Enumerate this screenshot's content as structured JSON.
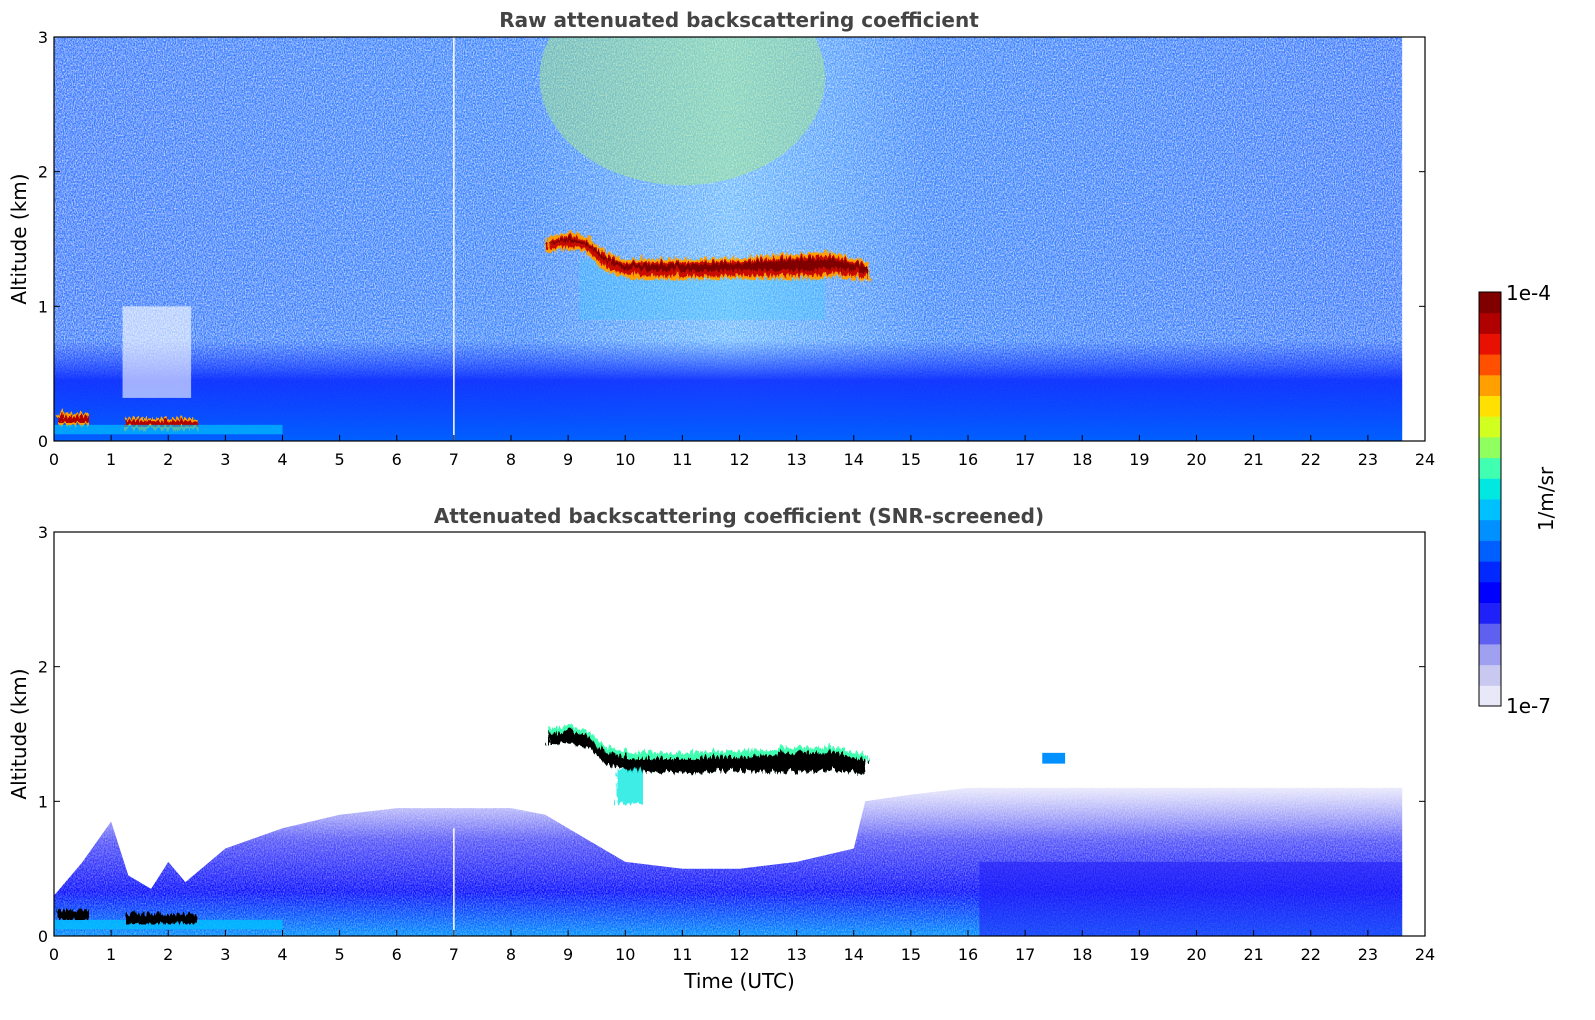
{
  "chart_data": [
    {
      "type": "heatmap",
      "title": "Raw attenuated backscattering coefficient",
      "xlabel": "",
      "ylabel": "Altitude (km)",
      "xlim": [
        0,
        24
      ],
      "ylim": [
        0,
        3
      ],
      "xticks": [
        "0",
        "1",
        "2",
        "3",
        "4",
        "5",
        "6",
        "7",
        "8",
        "9",
        "10",
        "11",
        "12",
        "13",
        "14",
        "15",
        "16",
        "17",
        "18",
        "19",
        "20",
        "21",
        "22",
        "23",
        "24"
      ],
      "yticks": [
        "0",
        "1",
        "2",
        "3"
      ],
      "data_end_hour": 23.6,
      "grid": false,
      "features": [
        {
          "name": "cloud layer",
          "x_start": 8.6,
          "x_end": 14.2,
          "altitude_km": [
            1.5,
            1.3
          ],
          "level": "1e-4"
        },
        {
          "name": "low cloud",
          "x_start": 0.0,
          "x_end": 0.6,
          "altitude_km": 0.17,
          "level": "1e-4"
        },
        {
          "name": "low cloud",
          "x_start": 1.2,
          "x_end": 2.5,
          "altitude_km": 0.14,
          "level": "1e-4"
        },
        {
          "name": "boundary layer",
          "x_start": 0.0,
          "x_end": 23.6,
          "altitude_km": [
            0.0,
            0.4
          ],
          "level": "elevated"
        },
        {
          "name": "noise above boundary layer",
          "x_start": 0.0,
          "x_end": 23.6,
          "altitude_km": [
            0.4,
            3.0
          ],
          "level": "noisy"
        }
      ]
    },
    {
      "type": "heatmap",
      "title": "Attenuated backscattering coefficient (SNR-screened)",
      "xlabel": "Time (UTC)",
      "ylabel": "Altitude (km)",
      "xlim": [
        0,
        24
      ],
      "ylim": [
        0,
        3
      ],
      "xticks": [
        "0",
        "1",
        "2",
        "3",
        "4",
        "5",
        "6",
        "7",
        "8",
        "9",
        "10",
        "11",
        "12",
        "13",
        "14",
        "15",
        "16",
        "17",
        "18",
        "19",
        "20",
        "21",
        "22",
        "23",
        "24"
      ],
      "yticks": [
        "0",
        "1",
        "2",
        "3"
      ],
      "data_end_hour": 23.6,
      "grid": false,
      "features": [
        {
          "name": "cloud layer (saturated)",
          "x_start": 8.6,
          "x_end": 14.2,
          "altitude_km": [
            1.5,
            1.3
          ],
          "level": "above range"
        },
        {
          "name": "low cloud (saturated)",
          "x_start": 0.0,
          "x_end": 0.6,
          "altitude_km": 0.17,
          "level": "above range"
        },
        {
          "name": "low cloud (saturated)",
          "x_start": 1.2,
          "x_end": 2.5,
          "altitude_km": 0.14,
          "level": "above range"
        },
        {
          "name": "boundary layer",
          "x_start": 0.0,
          "x_end": 23.6,
          "altitude_km": [
            0.0,
            1.1
          ],
          "level": "elevated"
        }
      ]
    }
  ],
  "colorbar": {
    "max_label": "1e-4",
    "min_label": "1e-7",
    "units_label": "1/m/sr",
    "colors": [
      "#e8e8f8",
      "#c8c8f0",
      "#a0a0f0",
      "#6060f0",
      "#2020f8",
      "#0000ff",
      "#0028ff",
      "#0060ff",
      "#0090ff",
      "#00c0ff",
      "#00e8e0",
      "#40ffb0",
      "#90ff60",
      "#d0ff20",
      "#ffe000",
      "#ffa000",
      "#ff5000",
      "#e81000",
      "#b00000",
      "#800000"
    ]
  }
}
